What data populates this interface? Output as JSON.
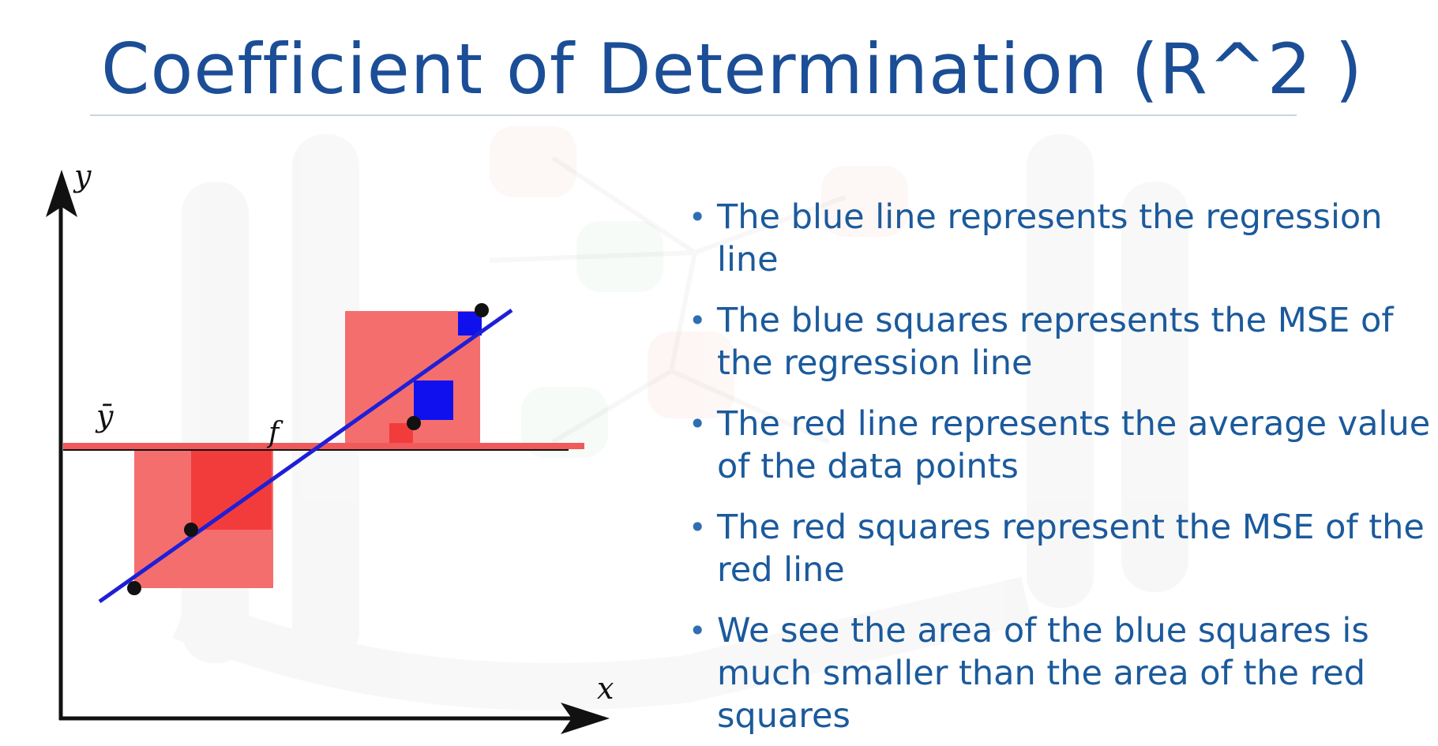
{
  "slide": {
    "title": "Coefficient of Determination (R^2 )"
  },
  "diagram": {
    "y_axis_label": "y",
    "x_axis_label": "x",
    "mean_label": "ȳ",
    "function_label": "f",
    "colors": {
      "axis": "#111111",
      "regression_line": "#1f1fd6",
      "mean_line": "#f05a5a",
      "red_square": "#f46e6e",
      "red_square_dark": "#f23c3c",
      "blue_square": "#1010ee",
      "point": "#111111"
    }
  },
  "bullets": [
    {
      "marker": "•",
      "text": "The blue line represents the regression line"
    },
    {
      "marker": "•",
      "text": "The blue squares represents the MSE of the regression line"
    },
    {
      "marker": "•",
      "text": "The red line represents the average value of the data points"
    },
    {
      "marker": "•",
      "text": "The red squares represent the MSE of the red line"
    },
    {
      "marker": "•",
      "text": "We see the area of the blue squares is much smaller than the area of the red squares"
    }
  ]
}
